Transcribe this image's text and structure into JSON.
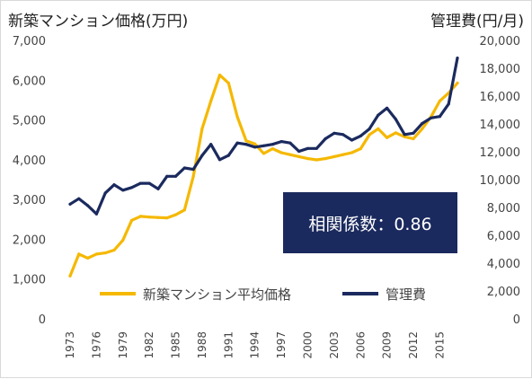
{
  "chart_data": {
    "type": "line",
    "title_left": "新築マンション価格(万円)",
    "title_right": "管理費(円/月)",
    "x": [
      1973,
      1974,
      1975,
      1976,
      1977,
      1978,
      1979,
      1980,
      1981,
      1982,
      1983,
      1984,
      1985,
      1986,
      1987,
      1988,
      1989,
      1990,
      1991,
      1992,
      1993,
      1994,
      1995,
      1996,
      1997,
      1998,
      1999,
      2000,
      2001,
      2002,
      2003,
      2004,
      2005,
      2006,
      2007,
      2008,
      2009,
      2010,
      2011,
      2012,
      2013,
      2014,
      2015,
      2016,
      2017
    ],
    "x_tick_labels": [
      "1973",
      "1976",
      "1979",
      "1982",
      "1985",
      "1988",
      "1991",
      "1994",
      "1997",
      "2000",
      "2003",
      "2006",
      "2009",
      "2012",
      "2015"
    ],
    "y_left": {
      "ylim": [
        0,
        7000
      ],
      "ticks": [
        "0",
        "1,000",
        "2,000",
        "3,000",
        "4,000",
        "5,000",
        "6,000",
        "7,000"
      ]
    },
    "y_right": {
      "ylim": [
        0,
        20000
      ],
      "ticks": [
        "0",
        "2,000",
        "4,000",
        "6,000",
        "8,000",
        "10,000",
        "12,000",
        "14,000",
        "16,000",
        "18,000",
        "20,000"
      ]
    },
    "series": [
      {
        "name": "新築マンション平均価格",
        "axis": "left",
        "color": "#f5b800",
        "values": [
          1100,
          1650,
          1550,
          1650,
          1680,
          1750,
          2000,
          2500,
          2600,
          2580,
          2570,
          2560,
          2640,
          2760,
          3600,
          4800,
          5500,
          6150,
          5950,
          5100,
          4500,
          4420,
          4180,
          4300,
          4200,
          4150,
          4100,
          4050,
          4020,
          4050,
          4100,
          4150,
          4200,
          4300,
          4650,
          4800,
          4580,
          4700,
          4600,
          4550,
          4800,
          5100,
          5500,
          5700,
          5950
        ]
      },
      {
        "name": "管理費",
        "axis": "right",
        "color": "#1b2a5e",
        "values": [
          8300,
          8700,
          8200,
          7600,
          9100,
          9700,
          9300,
          9500,
          9800,
          9800,
          9400,
          10300,
          10300,
          10900,
          10800,
          11800,
          12600,
          11500,
          11800,
          12700,
          12600,
          12400,
          12500,
          12600,
          12800,
          12700,
          12100,
          12300,
          12300,
          13000,
          13400,
          13300,
          12900,
          13200,
          13700,
          14700,
          15200,
          14400,
          13300,
          13400,
          14100,
          14500,
          14600,
          15500,
          18800
        ]
      }
    ],
    "annotation": "相関係数：0.86",
    "legend": {
      "placement": "bottom"
    }
  }
}
